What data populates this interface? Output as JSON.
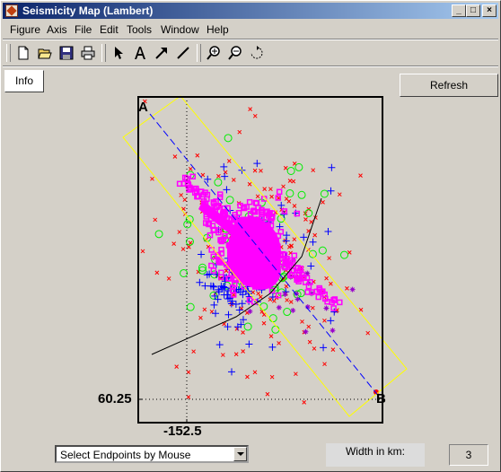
{
  "window": {
    "title": "Seismicity Map (Lambert)"
  },
  "title_buttons": {
    "minimize": "_",
    "maximize": "□",
    "close": "×"
  },
  "menu": [
    {
      "label": "Figure"
    },
    {
      "label": "Axis"
    },
    {
      "label": "File"
    },
    {
      "label": "Edit"
    },
    {
      "label": "Tools"
    },
    {
      "label": "Window"
    },
    {
      "label": "Help"
    }
  ],
  "toolbar": {
    "icons": [
      "new-file-icon",
      "open-folder-icon",
      "save-icon",
      "print-icon",
      "select-arrow-icon",
      "insert-text-icon",
      "insert-arrow-icon",
      "insert-line-icon",
      "zoom-in-icon",
      "zoom-out-icon",
      "rotate-icon"
    ]
  },
  "buttons": {
    "info": "Info",
    "refresh": "Refresh"
  },
  "plot": {
    "x_tick_label": "-152.5",
    "y_tick_label": "60.25",
    "endpoint_a_label": "A",
    "endpoint_b_label": "B",
    "colors": {
      "red_x": "#ff0000",
      "blue_plus": "#0000ff",
      "green_circle": "#00ee00",
      "magenta_square": "#ff00ff",
      "purple_star": "#9900cc",
      "profile_box": "#ffff00",
      "profile_line": "#0000ff"
    }
  },
  "controls": {
    "endpoint_mode": "Select Endpoints by Mouse",
    "width_label": "Width in km:",
    "width_value": "3"
  }
}
